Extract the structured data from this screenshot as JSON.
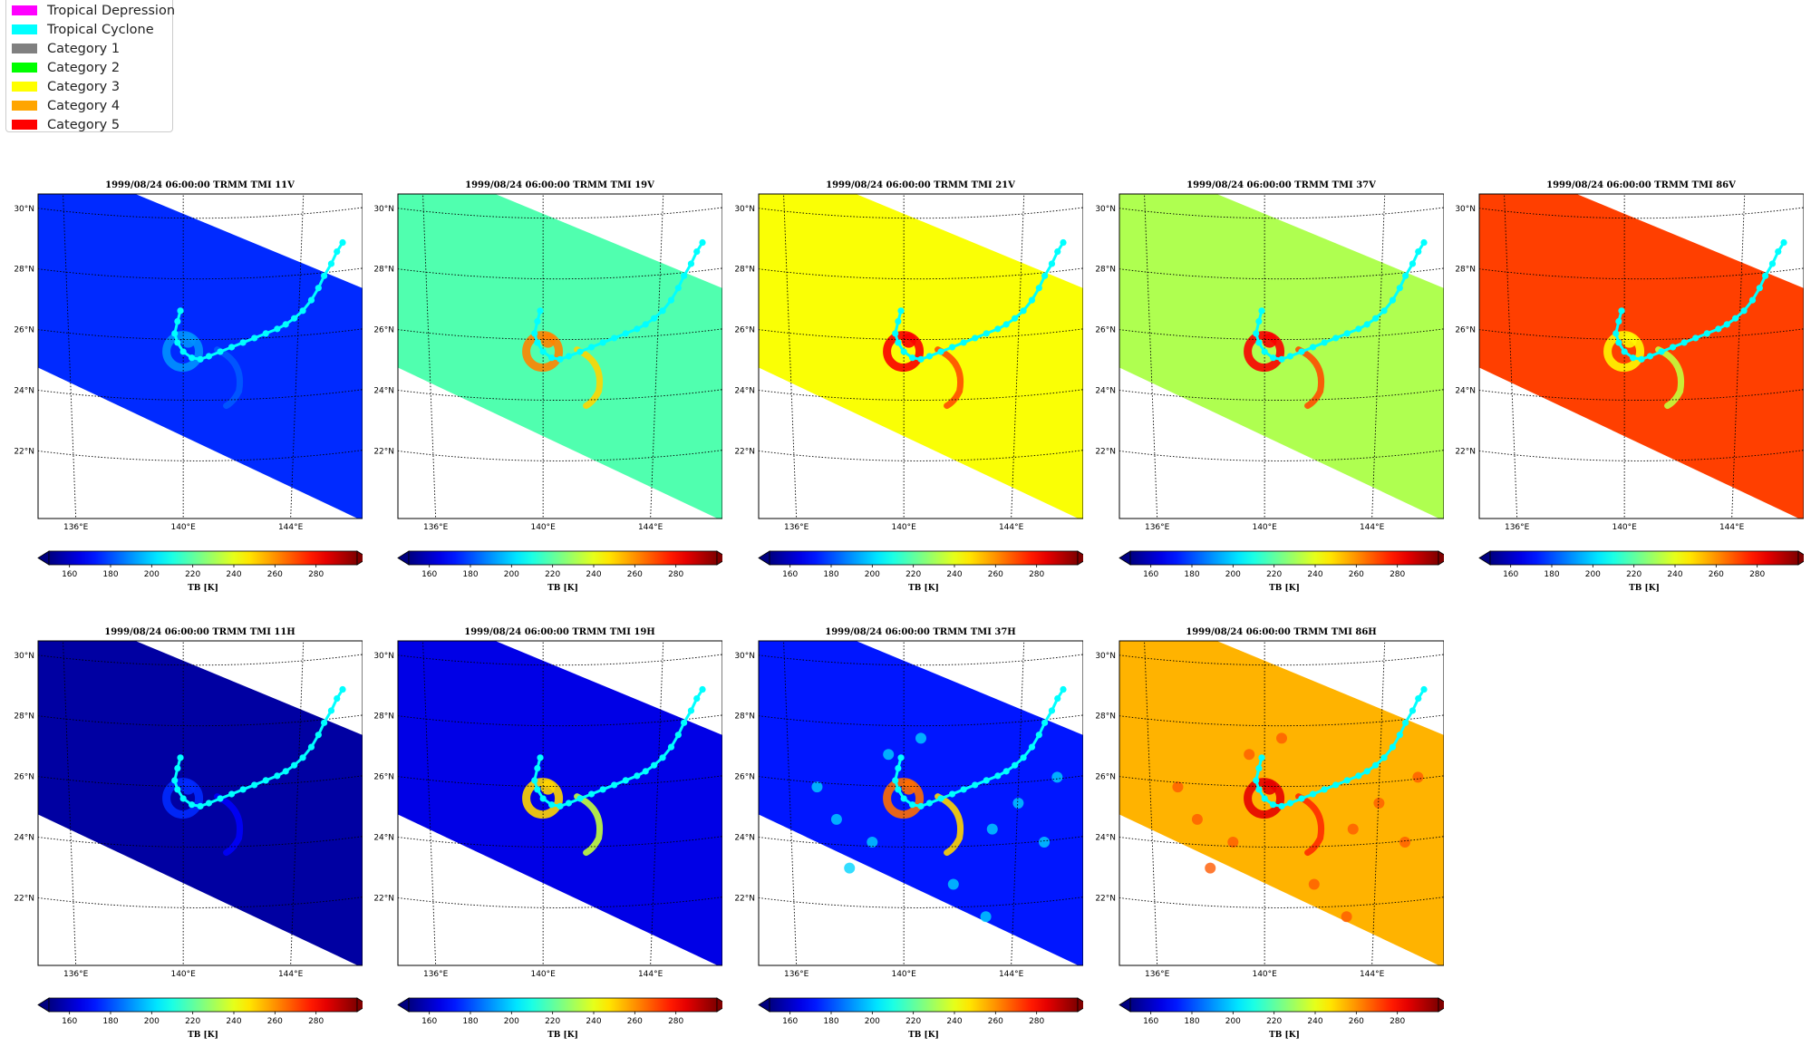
{
  "legend": {
    "items": [
      {
        "label": "Tropical Depression",
        "color": "#ff00ff"
      },
      {
        "label": "Tropical Cyclone",
        "color": "#00ffff"
      },
      {
        "label": "Category 1",
        "color": "#808080"
      },
      {
        "label": "Category 2",
        "color": "#00ff00"
      },
      {
        "label": "Category 3",
        "color": "#ffff00"
      },
      {
        "label": "Category 4",
        "color": "#ffa500"
      },
      {
        "label": "Category 5",
        "color": "#ff0000"
      }
    ]
  },
  "chart_data": {
    "type": "heatmap",
    "lat_ticks": [
      "30°N",
      "28°N",
      "26°N",
      "24°N",
      "22°N"
    ],
    "lon_ticks": [
      "136°E",
      "140°E",
      "144°E"
    ],
    "colorbar": {
      "label": "TB [K]",
      "ticks": [
        "160",
        "180",
        "200",
        "220",
        "240",
        "260",
        "280"
      ],
      "range": [
        150,
        300
      ],
      "colormap": "jet",
      "extend": "both"
    },
    "track": {
      "category": "Tropical Cyclone",
      "color": "#00ffff",
      "points": [
        [
          139.9,
          26.95
        ],
        [
          139.8,
          26.6
        ],
        [
          139.7,
          26.2
        ],
        [
          139.8,
          25.9
        ],
        [
          140.0,
          25.6
        ],
        [
          140.3,
          25.4
        ],
        [
          140.6,
          25.35
        ],
        [
          140.9,
          25.45
        ],
        [
          141.3,
          25.6
        ],
        [
          141.7,
          25.75
        ],
        [
          142.1,
          25.9
        ],
        [
          142.5,
          26.05
        ],
        [
          142.9,
          26.2
        ],
        [
          143.3,
          26.35
        ],
        [
          143.6,
          26.5
        ],
        [
          143.9,
          26.7
        ],
        [
          144.2,
          26.95
        ],
        [
          144.5,
          27.3
        ],
        [
          144.75,
          27.7
        ],
        [
          144.95,
          28.1
        ],
        [
          145.2,
          28.5
        ],
        [
          145.4,
          28.9
        ],
        [
          145.6,
          29.2
        ]
      ]
    },
    "panels": [
      {
        "title": "1999/08/24 06:00:00  TRMM TMI 11V",
        "background_tb": 175,
        "storm": "11V"
      },
      {
        "title": "1999/08/24 06:00:00  TRMM TMI 19V",
        "background_tb": 218,
        "storm": "19V"
      },
      {
        "title": "1999/08/24 06:00:00  TRMM TMI 21V",
        "background_tb": 243,
        "storm": "21V"
      },
      {
        "title": "1999/08/24 06:00:00  TRMM TMI 37V",
        "background_tb": 232,
        "storm": "37V"
      },
      {
        "title": "1999/08/24 06:00:00  TRMM TMI 86V",
        "background_tb": 272,
        "storm": "86V"
      },
      {
        "title": "1999/08/24 06:00:00  TRMM TMI 11H",
        "background_tb": 155,
        "storm": "11H"
      },
      {
        "title": "1999/08/24 06:00:00  TRMM TMI 19H",
        "background_tb": 165,
        "storm": "19H"
      },
      {
        "title": "1999/08/24 06:00:00  TRMM TMI 37H",
        "background_tb": 172,
        "storm": "37H"
      },
      {
        "title": "1999/08/24 06:00:00  TRMM TMI 86H",
        "background_tb": 255,
        "storm": "86H"
      }
    ]
  }
}
